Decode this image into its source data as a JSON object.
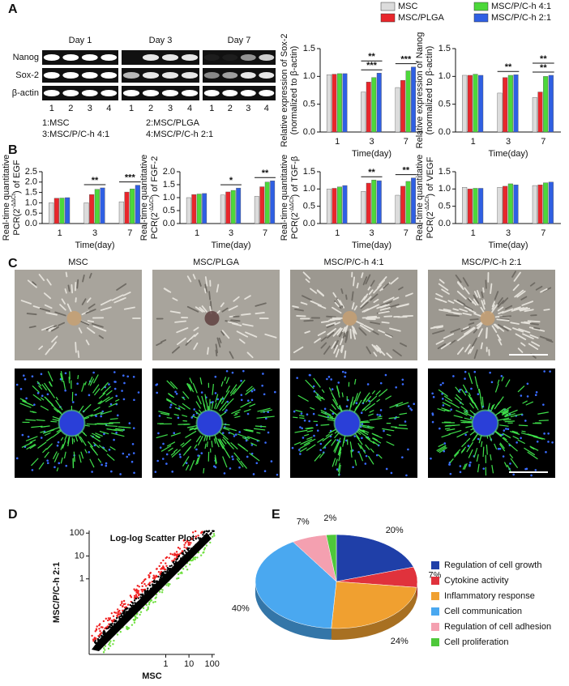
{
  "panel_labels": [
    "A",
    "B",
    "C",
    "D",
    "E"
  ],
  "gel": {
    "days": [
      "Day 1",
      "Day 3",
      "Day 7"
    ],
    "genes": [
      "Nanog",
      "Sox-2",
      "β-actin"
    ],
    "lanes": [
      "1",
      "2",
      "3",
      "4"
    ],
    "key": [
      "1:MSC",
      "2:MSC/PLGA",
      "3:MSC/P/C-h 4:1",
      "4:MSC/P/C-h 2:1"
    ]
  },
  "micrographs": {
    "titles": [
      "MSC",
      "MSC/PLGA",
      "MSC/P/C-h 4:1",
      "MSC/P/C-h 2:1"
    ]
  },
  "chart_data": [
    {
      "type": "bar",
      "ylabel": [
        "Relative expression of Sox-2",
        "(normalized to β-actin)"
      ],
      "xlabel": "Time(day)",
      "categories": [
        "1",
        "3",
        "7"
      ],
      "series": [
        {
          "name": "MSC",
          "color": "#dcdcdc",
          "values": [
            1.03,
            0.72,
            0.8
          ]
        },
        {
          "name": "MSC/PLGA",
          "color": "#e8262b",
          "values": [
            1.04,
            0.9,
            0.93
          ]
        },
        {
          "name": "MSC/P/C-h 4:1",
          "color": "#4cd83a",
          "values": [
            1.05,
            0.98,
            1.1
          ]
        },
        {
          "name": "MSC/P/C-h 2:1",
          "color": "#2f5fe3",
          "values": [
            1.05,
            1.06,
            1.17
          ]
        }
      ],
      "ylim": [
        0,
        1.5
      ],
      "yticks": [
        {
          "value": 0,
          "label": "0.0"
        },
        0.5,
        {
          "value": 1,
          "label": "1.0"
        },
        1.5
      ],
      "annotations": [
        "***",
        "**",
        "***"
      ]
    },
    {
      "type": "bar",
      "ylabel": [
        "Relative expression of Nanog",
        "(normalized to β-actin)"
      ],
      "xlabel": "Time(day)",
      "categories": [
        "1",
        "3",
        "7"
      ],
      "series": [
        {
          "color": "#dcdcdc",
          "values": [
            1.02,
            0.7,
            0.62
          ]
        },
        {
          "color": "#e8262b",
          "values": [
            1.02,
            0.98,
            0.72
          ]
        },
        {
          "color": "#4cd83a",
          "values": [
            1.04,
            1.02,
            1.0
          ]
        },
        {
          "color": "#2f5fe3",
          "values": [
            1.02,
            1.03,
            1.02
          ]
        }
      ],
      "ylim": [
        0,
        1.5
      ],
      "yticks": [
        {
          "value": 0,
          "label": "0.0"
        },
        0.5,
        {
          "value": 1,
          "label": "1.0"
        },
        1.5
      ],
      "annotations": [
        "**",
        "**",
        "**"
      ]
    },
    {
      "type": "bar",
      "ylabel": [
        "Real-time quantitative",
        "PCR(2",
        "-ΔΔCt",
        ") of EGF"
      ],
      "xlabel": "Time(day)",
      "categories": [
        "1",
        "3",
        "7"
      ],
      "series": [
        {
          "color": "#dcdcdc",
          "values": [
            1.0,
            1.0,
            1.05
          ]
        },
        {
          "color": "#e8262b",
          "values": [
            1.22,
            1.4,
            1.52
          ]
        },
        {
          "color": "#4cd83a",
          "values": [
            1.23,
            1.65,
            1.67
          ]
        },
        {
          "color": "#2f5fe3",
          "values": [
            1.25,
            1.72,
            1.85
          ]
        }
      ],
      "ylim": [
        0,
        2.5
      ],
      "yticks": [
        {
          "value": 0,
          "label": "0.0"
        },
        0.5,
        {
          "value": 1,
          "label": "1.0"
        },
        1.5,
        {
          "value": 2,
          "label": "2.0"
        },
        2.5
      ],
      "annotations": [
        "**",
        "***"
      ]
    },
    {
      "type": "bar",
      "ylabel": [
        "Real-time quantitative",
        "PCR(2",
        "-ΔΔCt",
        ") of FGF-2"
      ],
      "xlabel": "Time(day)",
      "categories": [
        "1",
        "3",
        "7"
      ],
      "series": [
        {
          "color": "#dcdcdc",
          "values": [
            1.0,
            1.1,
            1.05
          ]
        },
        {
          "color": "#e8262b",
          "values": [
            1.12,
            1.22,
            1.42
          ]
        },
        {
          "color": "#4cd83a",
          "values": [
            1.14,
            1.28,
            1.6
          ]
        },
        {
          "color": "#2f5fe3",
          "values": [
            1.16,
            1.37,
            1.65
          ]
        }
      ],
      "ylim": [
        0,
        2
      ],
      "yticks": [
        {
          "value": 0,
          "label": "0.0"
        },
        0.5,
        {
          "value": 1,
          "label": "1.0"
        },
        1.5,
        {
          "value": 2,
          "label": "2.0"
        }
      ],
      "annotations": [
        "*",
        "**"
      ]
    },
    {
      "type": "bar",
      "ylabel": [
        "Real-time quantitative",
        "PCR(2",
        "-ΔΔCt",
        ") of TGF-β"
      ],
      "xlabel": "Time(day)",
      "categories": [
        "1",
        "3",
        "7"
      ],
      "series": [
        {
          "color": "#dcdcdc",
          "values": [
            1.0,
            0.93,
            0.82
          ]
        },
        {
          "color": "#e8262b",
          "values": [
            1.02,
            1.17,
            1.08
          ]
        },
        {
          "color": "#4cd83a",
          "values": [
            1.06,
            1.26,
            1.22
          ]
        },
        {
          "color": "#2f5fe3",
          "values": [
            1.1,
            1.24,
            1.32
          ]
        }
      ],
      "ylim": [
        0,
        1.5
      ],
      "yticks": [
        {
          "value": 0,
          "label": "0.0"
        },
        0.5,
        {
          "value": 1,
          "label": "1.0"
        },
        1.5
      ],
      "annotations": [
        "**",
        "**"
      ]
    },
    {
      "type": "bar",
      "ylabel": [
        "Real-time quantitative",
        "PCR(2",
        "-ΔΔCt",
        ") of VEGF"
      ],
      "xlabel": "Time(day)",
      "categories": [
        "1",
        "3",
        "7"
      ],
      "series": [
        {
          "color": "#dcdcdc",
          "values": [
            1.05,
            1.05,
            1.1
          ]
        },
        {
          "color": "#e8262b",
          "values": [
            1.0,
            1.08,
            1.12
          ]
        },
        {
          "color": "#4cd83a",
          "values": [
            1.02,
            1.15,
            1.18
          ]
        },
        {
          "color": "#2f5fe3",
          "values": [
            1.02,
            1.12,
            1.2
          ]
        }
      ],
      "ylim": [
        0,
        1.5
      ],
      "yticks": [
        {
          "value": 0,
          "label": "0.0"
        },
        0.5,
        {
          "value": 1,
          "label": "1.0"
        },
        1.5
      ]
    },
    {
      "type": "scatter",
      "title": "Log-log Scatter Plot",
      "xlabel": "MSC",
      "ylabel": "MSC/P/C-h 2:1",
      "log": true,
      "xlim": [
        0.0005,
        130
      ],
      "ylim": [
        0.0005,
        130
      ],
      "xticks": [
        1,
        10,
        100
      ],
      "yticks": [
        1,
        10,
        100
      ]
    },
    {
      "type": "pie",
      "categories": [
        "Regulation of cell growth",
        "Cytokine activity",
        "Inflammatory response",
        "Cell communication",
        "Regulation of cell adhesion",
        "Cell proliferation"
      ],
      "values": [
        20,
        7,
        24,
        40,
        7,
        2
      ],
      "value_labels": [
        "20%",
        "7%",
        "24%",
        "40%",
        "7%",
        "2%"
      ],
      "colors": [
        "#1f3fa8",
        "#e0323c",
        "#f0a030",
        "#4aa8f0",
        "#f4a0b0",
        "#4ec83a"
      ]
    }
  ]
}
